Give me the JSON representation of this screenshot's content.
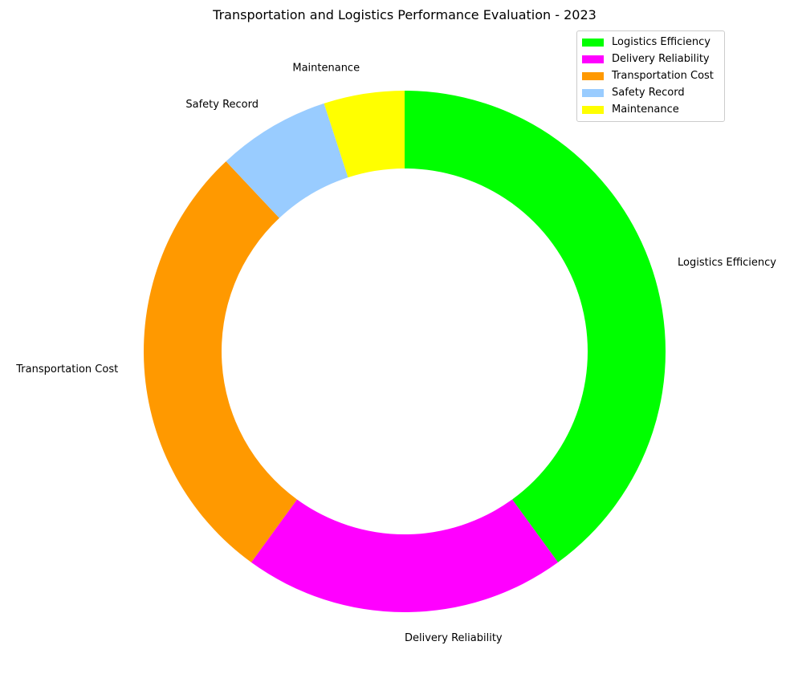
{
  "chart_data": {
    "type": "pie",
    "donut": true,
    "title": "Transportation and Logistics Performance Evaluation - 2023",
    "slices": [
      {
        "label": "Logistics Efficiency",
        "value": 40,
        "color": "#00ff00"
      },
      {
        "label": "Delivery Reliability",
        "value": 20,
        "color": "#ff00ff"
      },
      {
        "label": "Transportation Cost",
        "value": 28,
        "color": "#ff9900"
      },
      {
        "label": "Safety Record",
        "value": 7,
        "color": "#99ccff"
      },
      {
        "label": "Maintenance",
        "value": 5,
        "color": "#ffff00"
      }
    ],
    "start_angle_deg": 90,
    "direction": "clockwise",
    "legend_position": "top-right"
  }
}
